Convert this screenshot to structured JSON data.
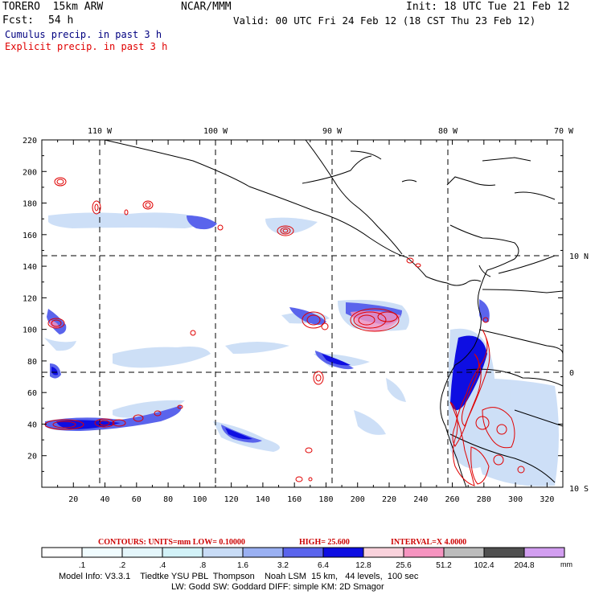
{
  "header": {
    "model": "TORERO  15km ARW",
    "org": "NCAR/MMM",
    "init": "Init: 18 UTC Tue 21 Feb 12",
    "fcst_label": "Fcst:",
    "fcst_value": "54 h",
    "valid": "Valid: 00 UTC Fri 24 Feb 12 (18 CST Thu 23 Feb 12)",
    "legend_cumulus": "Cumulus precip. in past 3 h",
    "legend_explicit": "Explicit precip. in past 3 h",
    "colors": {
      "cumulus": "#000080",
      "explicit": "#e00000"
    }
  },
  "map": {
    "lon_labels": [
      "110 W",
      "100 W",
      "90 W",
      "80 W",
      "70 W"
    ],
    "lat_labels": [
      "10 N",
      "0",
      "10 S"
    ],
    "x_ticks": [
      "20",
      "40",
      "60",
      "80",
      "100",
      "120",
      "140",
      "160",
      "180",
      "200",
      "220",
      "240",
      "260",
      "280",
      "300",
      "320"
    ],
    "y_ticks": [
      "20",
      "40",
      "60",
      "80",
      "100",
      "120",
      "140",
      "160",
      "180",
      "200",
      "220"
    ]
  },
  "contour_info": {
    "units": "CONTOURS:  UNITS=mm  LOW= 0.10000",
    "high": "HIGH=  25.600",
    "interval": "INTERVAL=X  4.0000",
    "color": "#cc0000"
  },
  "colorbar": {
    "labels": [
      ".1",
      ".2",
      ".4",
      ".8",
      "1.6",
      "3.2",
      "6.4",
      "12.8",
      "25.6",
      "51.2",
      "102.4",
      "204.8"
    ],
    "unit": "mm",
    "colors": [
      "#ffffff",
      "#f0fcff",
      "#e4f6fb",
      "#d2f2f8",
      "#c8dcf6",
      "#9ab0f2",
      "#5a64ec",
      "#0e0ee2",
      "#f9d2dc",
      "#f694c0",
      "#bcbcbc",
      "#505050",
      "#d29ef0"
    ]
  },
  "footer": {
    "line1": "Model Info: V3.3.1    Tiedtke YSU PBL  Thompson    Noah LSM  15 km,   44 levels,  100 sec",
    "line2": "LW: Godd SW: Goddard DIFF: simple KM: 2D Smagor"
  }
}
